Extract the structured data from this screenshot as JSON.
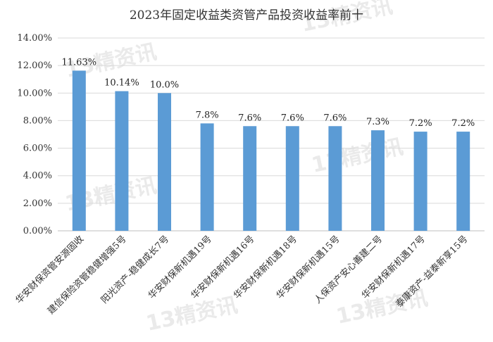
{
  "chart_data": {
    "type": "bar",
    "title": "2023年固定收益类资管产品投资收益率前十",
    "xlabel": "",
    "ylabel": "",
    "ylim": [
      0,
      14
    ],
    "y_ticks": [
      "0.00%",
      "2.00%",
      "4.00%",
      "6.00%",
      "8.00%",
      "10.00%",
      "12.00%",
      "14.00%"
    ],
    "grid": true,
    "legend": "none",
    "bar_color": "#5b9bd5",
    "categories": [
      "华安财保资管安源固收",
      "建信保险资管稳健增强5号",
      "阳光资产-稳健成长7号",
      "华安财保新机遇19号",
      "华安财保新机遇16号",
      "华安财保新机遇18号",
      "华安财保新机遇15号",
      "人保资产安心善建二号",
      "华安财保新机遇17号",
      "泰康资产-益泰新享15号"
    ],
    "values": [
      11.63,
      10.14,
      10.0,
      7.8,
      7.6,
      7.6,
      7.6,
      7.3,
      7.2,
      7.2
    ],
    "data_labels": [
      "11.63%",
      "10.14%",
      "10.0%",
      "7.8%",
      "7.6%",
      "7.6%",
      "7.6%",
      "7.3%",
      "7.2%",
      "7.2%"
    ]
  },
  "watermark": {
    "text": "13精资讯",
    "color": "#d8d8d8"
  }
}
